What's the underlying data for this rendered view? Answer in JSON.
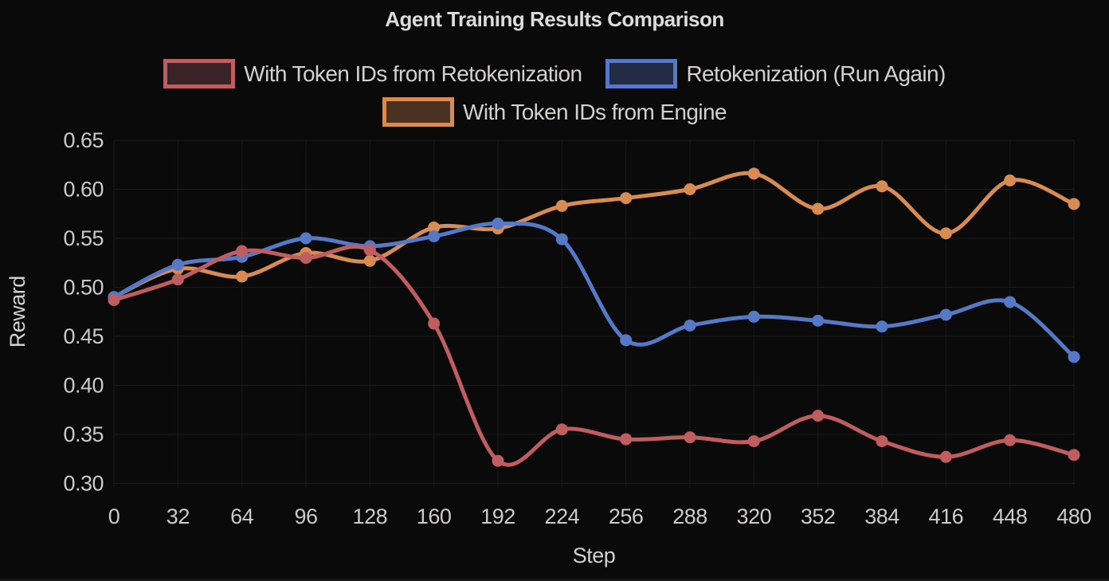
{
  "colors": {
    "background": "#0a0a0a",
    "grid": "#1a1a1a",
    "title_text": "#dcdcdc",
    "tick_text": "#ccc9c9",
    "axis_label_text": "#d3d0d0"
  },
  "chart_data": {
    "type": "line",
    "title": "Agent Training Results Comparison",
    "xlabel": "Step",
    "ylabel": "Reward",
    "x": [
      0,
      32,
      64,
      96,
      128,
      160,
      192,
      224,
      256,
      288,
      320,
      352,
      384,
      416,
      448,
      480
    ],
    "xlim": [
      0,
      480
    ],
    "ylim": [
      0.3,
      0.65
    ],
    "yticks": [
      0.3,
      0.35,
      0.4,
      0.45,
      0.5,
      0.55,
      0.6,
      0.65
    ],
    "grid": true,
    "legend_position": "top",
    "legend_rows": [
      [
        0,
        1
      ],
      [
        2
      ]
    ],
    "series": [
      {
        "name": "With Token IDs from Retokenization",
        "color": "#c05d60",
        "legend_fill": "#3a2326",
        "values": [
          0.487,
          0.508,
          0.537,
          0.53,
          0.538,
          0.463,
          0.323,
          0.355,
          0.345,
          0.347,
          0.343,
          0.369,
          0.343,
          0.327,
          0.344,
          0.329
        ]
      },
      {
        "name": "Retokenization (Run Again)",
        "color": "#5579c7",
        "legend_fill": "#242b45",
        "values": [
          0.49,
          0.523,
          0.531,
          0.55,
          0.542,
          0.552,
          0.565,
          0.549,
          0.446,
          0.461,
          0.47,
          0.466,
          0.46,
          0.472,
          0.485,
          0.429
        ]
      },
      {
        "name": "With Token IDs from Engine",
        "color": "#d88c51",
        "legend_fill": "#4a3222",
        "values": [
          0.49,
          0.519,
          0.511,
          0.535,
          0.527,
          0.561,
          0.56,
          0.583,
          0.591,
          0.6,
          0.616,
          0.58,
          0.603,
          0.555,
          0.609,
          0.585
        ]
      }
    ]
  }
}
